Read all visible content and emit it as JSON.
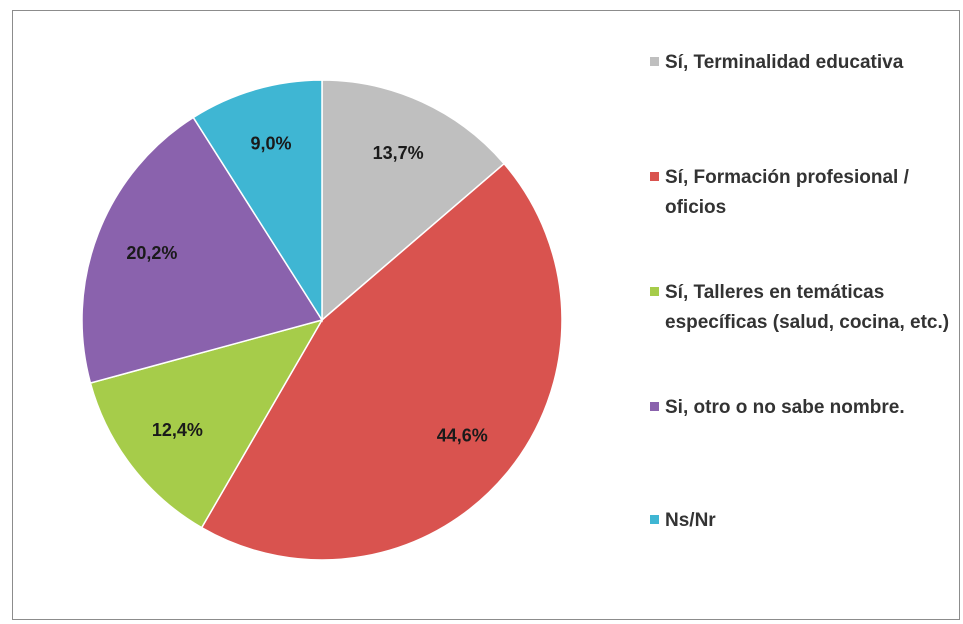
{
  "chart_data": {
    "type": "pie",
    "categories": [
      "Sí, Terminalidad educativa",
      "Sí, Formación profesional / oficios",
      "Sí, Talleres en temáticas específicas (salud, cocina, etc.)",
      "Si, otro o no sabe nombre.",
      "Ns/Nr"
    ],
    "values": [
      13.7,
      44.6,
      12.4,
      20.2,
      9.0
    ],
    "value_labels": [
      "13,7%",
      "44,6%",
      "12,4%",
      "20,2%",
      "9,0%"
    ],
    "colors": [
      "#bfbfbf",
      "#d9534f",
      "#a6cc4a",
      "#8a62ad",
      "#3fb6d3"
    ],
    "legend": "right"
  }
}
